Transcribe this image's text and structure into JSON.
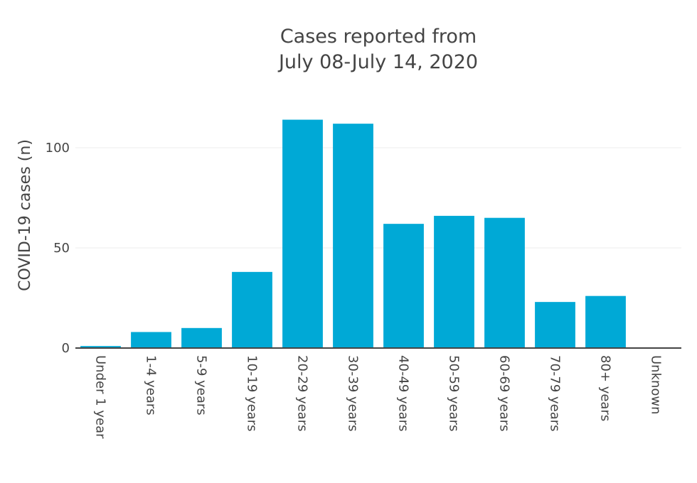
{
  "chart_data": {
    "type": "bar",
    "title_lines": [
      "Cases reported from",
      "July 08-July 14, 2020"
    ],
    "xlabel": "",
    "ylabel": "COVID-19 cases (n)",
    "categories": [
      "Under 1 year",
      "1-4 years",
      "5-9 years",
      "10-19 years",
      "20-29 years",
      "30-39 years",
      "40-49 years",
      "50-59 years",
      "60-69 years",
      "70-79 years",
      "80+ years",
      "Unknown"
    ],
    "values": [
      1,
      8,
      10,
      38,
      114,
      112,
      62,
      66,
      65,
      23,
      26,
      0
    ],
    "yticks": [
      0,
      50,
      100
    ],
    "ylim": [
      0,
      125
    ],
    "grid": true,
    "bar_color": "#00a9d6"
  }
}
